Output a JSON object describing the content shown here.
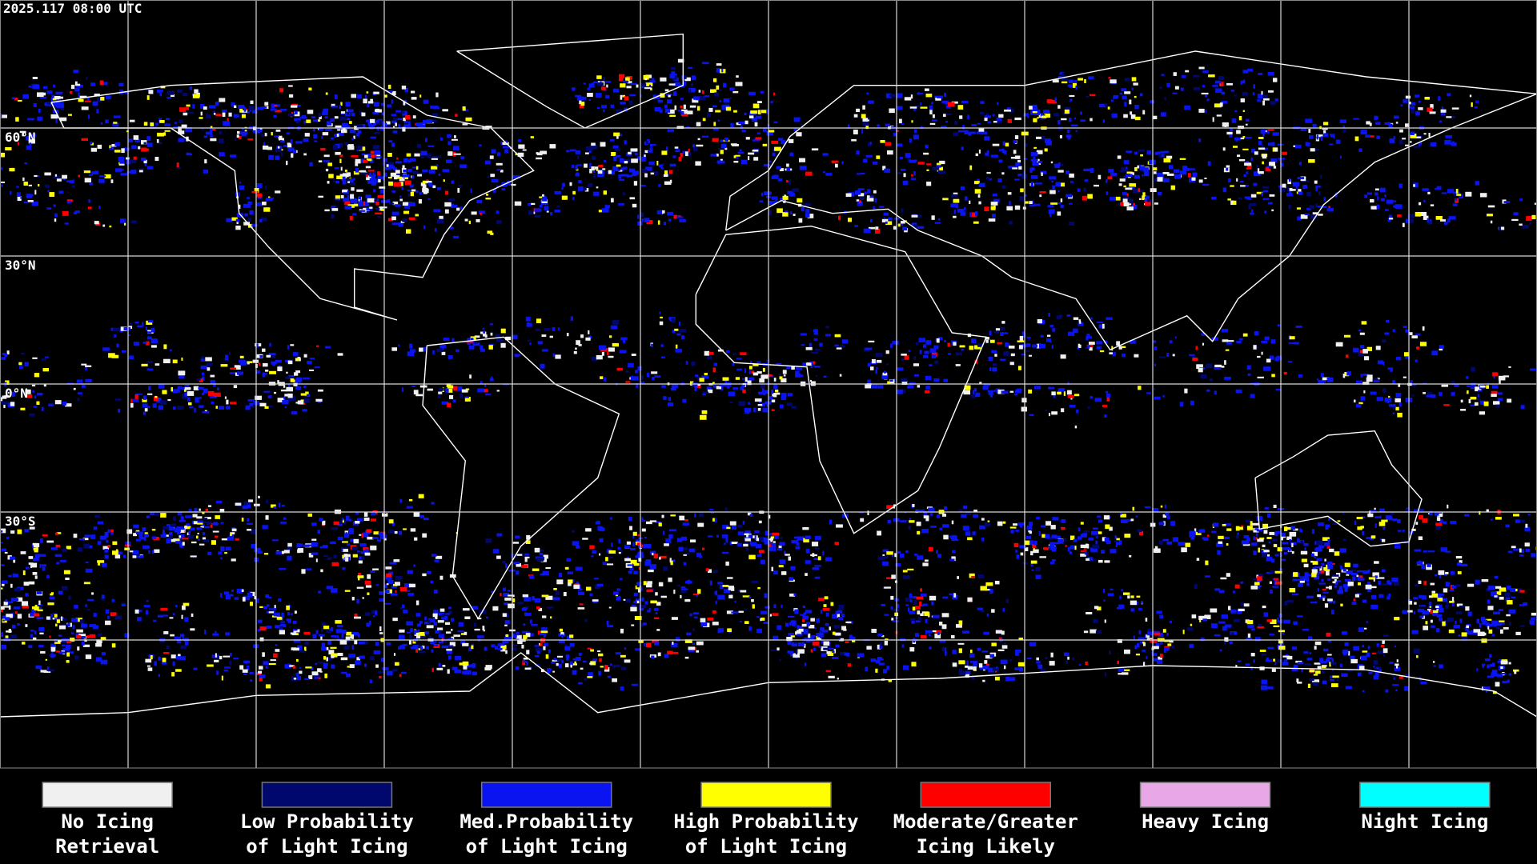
{
  "header": {
    "timestamp": "2025.117 08:00 UTC"
  },
  "map": {
    "latitude_labels": [
      "60°N",
      "30°N",
      "0°N",
      "30°S"
    ]
  },
  "legend": {
    "items": [
      {
        "label_lines": [
          "No Icing",
          "Retrieval"
        ],
        "color": "#f0f0f0"
      },
      {
        "label_lines": [
          "Low Probability",
          "of Light Icing"
        ],
        "color": "#00086e"
      },
      {
        "label_lines": [
          "Med.Probability",
          "of Light Icing"
        ],
        "color": "#0a14f0"
      },
      {
        "label_lines": [
          "High Probability",
          "of Light Icing"
        ],
        "color": "#ffff00"
      },
      {
        "label_lines": [
          "Moderate/Greater",
          "Icing Likely"
        ],
        "color": "#ff0000"
      },
      {
        "label_lines": [
          "Heavy Icing"
        ],
        "color": "#e8a8e8"
      },
      {
        "label_lines": [
          "Night Icing"
        ],
        "color": "#00ffff"
      }
    ]
  }
}
